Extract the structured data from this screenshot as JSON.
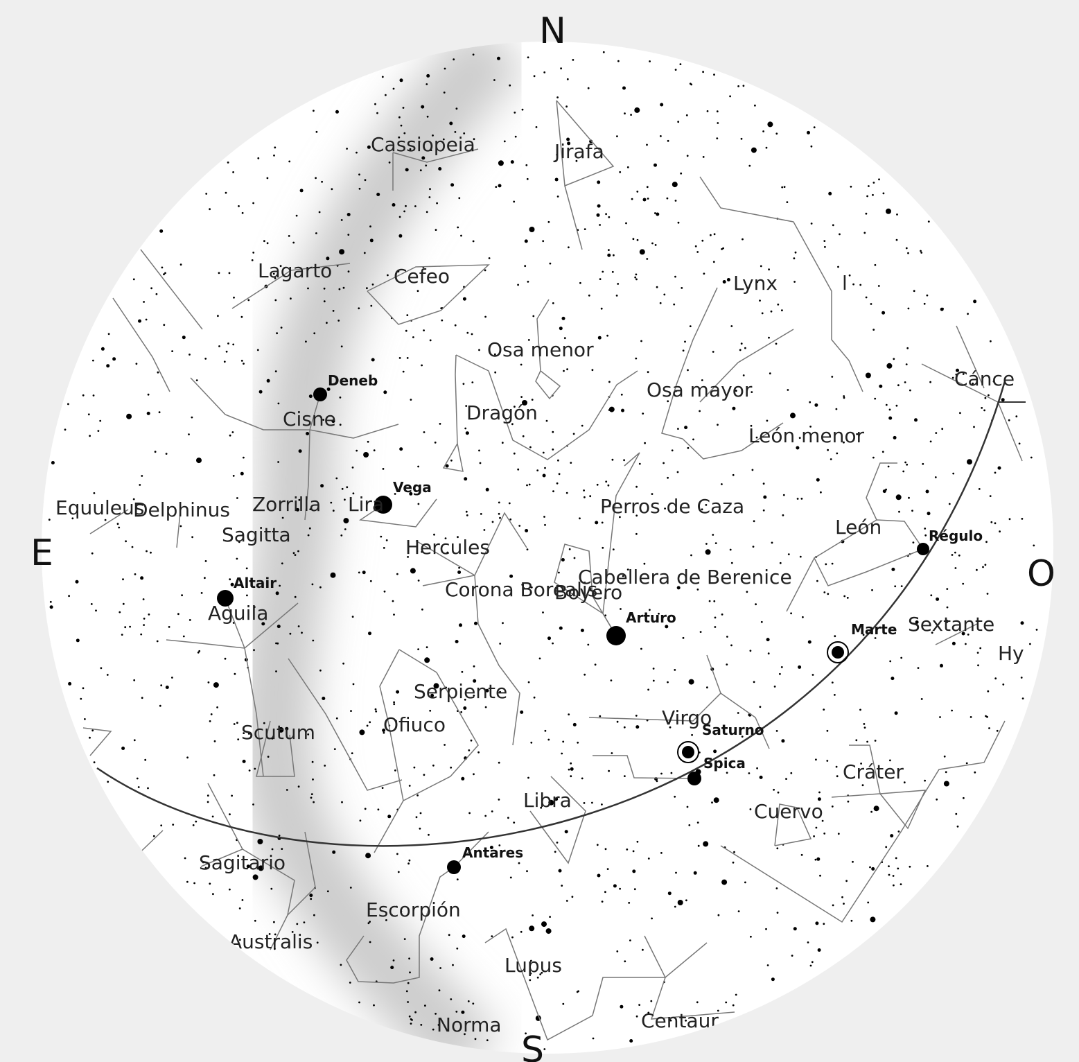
{
  "compass": {
    "north": "N",
    "south": "S",
    "east": "E",
    "west": "O"
  },
  "constellations": [
    "Cassiopeia",
    "Jirafa",
    "Lagarto",
    "Cefeo",
    "Lynx",
    "l",
    "Osa menor",
    "Cisne",
    "Dragón",
    "Osa mayor",
    "León menor",
    "Cánce",
    "Lira",
    "Equuleus",
    "Delphinus",
    "Zorrilla",
    "Sagitta",
    "Perros de Caza",
    "León",
    "Hercules",
    "Corona Borealis",
    "Boyero",
    "Cabellera de Berenice",
    "Aguila",
    "Sextante",
    "Hy",
    "Serpiente",
    "Virgo",
    "Scutum",
    "Ofiuco",
    "Cráter",
    "Libra",
    "Cuervo",
    "Sagitario",
    "Escorpión",
    "Australis",
    "Lupus",
    "Norma",
    "Centaur"
  ],
  "stars": [
    "Deneb",
    "Vega",
    "Altair",
    "Arturo",
    "Régulo",
    "Spica",
    "Antares"
  ],
  "planets": [
    "Marte",
    "Saturno"
  ]
}
